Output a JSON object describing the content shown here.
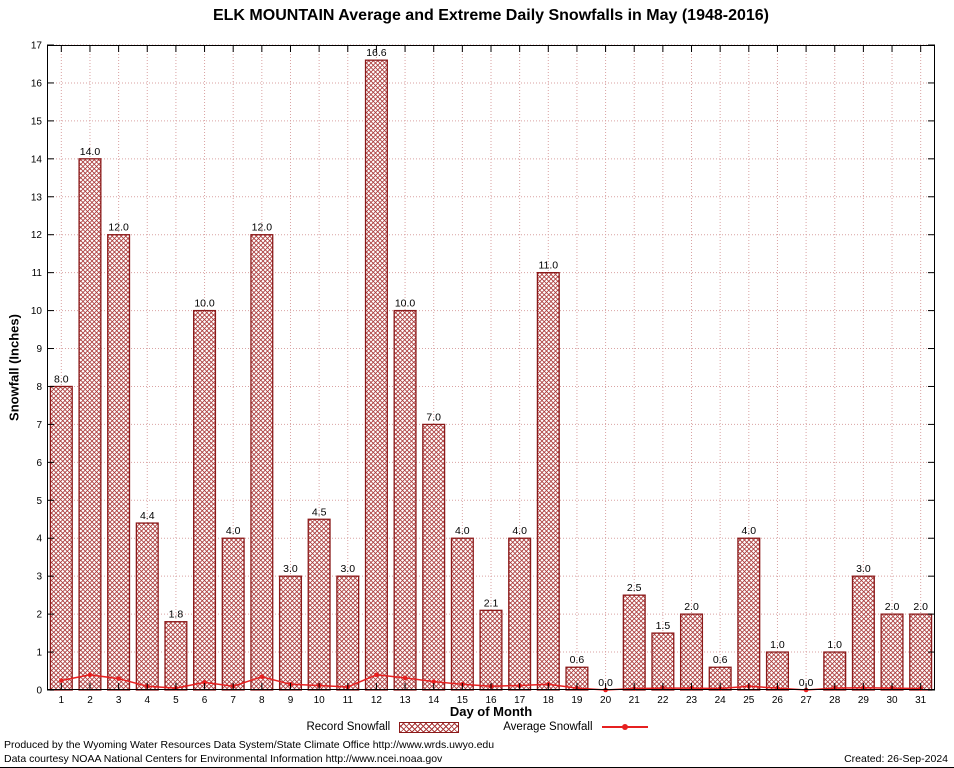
{
  "chart_data": {
    "type": "bar",
    "title": "ELK MOUNTAIN Average and Extreme Daily Snowfalls in May (1948-2016)",
    "xlabel": "Day of Month",
    "ylabel": "Snowfall (Inches)",
    "ylim": [
      0,
      17
    ],
    "ytick_step": 1,
    "grid": true,
    "legend_position": "bottom",
    "categories": [
      "1",
      "2",
      "3",
      "4",
      "5",
      "6",
      "7",
      "8",
      "9",
      "10",
      "11",
      "12",
      "13",
      "14",
      "15",
      "16",
      "17",
      "18",
      "19",
      "20",
      "21",
      "22",
      "23",
      "24",
      "25",
      "26",
      "27",
      "28",
      "29",
      "30",
      "31"
    ],
    "series": [
      {
        "name": "Record Snowfall",
        "type": "bar",
        "values": [
          8.0,
          14.0,
          12.0,
          4.4,
          1.8,
          10.0,
          4.0,
          12.0,
          3.0,
          4.5,
          3.0,
          16.6,
          10.0,
          7.0,
          4.0,
          2.1,
          4.0,
          11.0,
          0.6,
          0.0,
          2.5,
          1.5,
          2.0,
          0.6,
          4.0,
          1.0,
          0.0,
          1.0,
          3.0,
          2.0,
          2.0
        ]
      },
      {
        "name": "Average Snowfall",
        "type": "line",
        "values": [
          0.25,
          0.4,
          0.3,
          0.1,
          0.05,
          0.2,
          0.1,
          0.35,
          0.15,
          0.12,
          0.08,
          0.4,
          0.32,
          0.22,
          0.15,
          0.1,
          0.12,
          0.15,
          0.05,
          0.0,
          0.04,
          0.05,
          0.05,
          0.04,
          0.1,
          0.05,
          0.0,
          0.05,
          0.06,
          0.05,
          0.04
        ]
      }
    ]
  },
  "footer": {
    "line1": "Produced by the Wyoming Water Resources Data System/State Climate Office http://www.wrds.uwyo.edu",
    "line2": "Data courtesy NOAA National Centers for Environmental Information http://www.ncei.noaa.gov",
    "created": "Created: 26-Sep-2024"
  },
  "colors": {
    "bar_border": "#8b1a1a",
    "bar_hatch": "#aa3939",
    "avg_line": "#e62020",
    "grid": "#d9a2a2",
    "axis": "#000000"
  }
}
